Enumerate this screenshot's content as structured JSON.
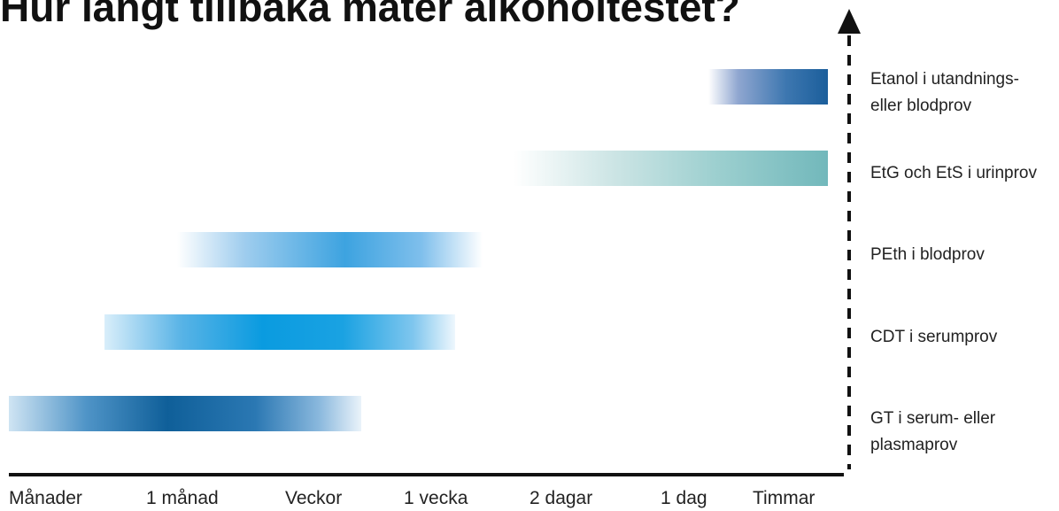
{
  "title": "Hur långt tillbaka mäter alkoholtestet?",
  "rows": [
    {
      "label": "Etanol i utandnings-\neller blodprov",
      "color": "#1b5e9b"
    },
    {
      "label": "EtG och EtS i urinprov",
      "color": "#72b8bb"
    },
    {
      "label": "PEth i blodprov",
      "color": "#3da3e0"
    },
    {
      "label": "CDT i serumprov",
      "color": "#0a9be0"
    },
    {
      "label": "GT i serum- eller\nplasmaprov",
      "color": "#0f5f99"
    }
  ],
  "time_axis": [
    "Månader",
    "1 månad",
    "Veckor",
    "1 vecka",
    "2 dagar",
    "1 dag",
    "Timmar"
  ]
}
